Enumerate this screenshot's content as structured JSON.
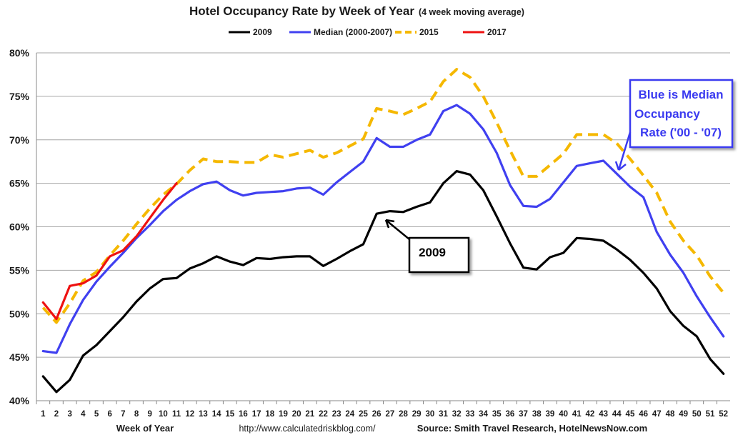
{
  "chart_data": {
    "type": "line",
    "title": "Hotel Occupancy Rate by  Week of Year",
    "subtitle": "(4 week moving average)",
    "xlabel": "Week of Year",
    "ylabel": "",
    "ylim": [
      40,
      80
    ],
    "y_ticks": [
      "40%",
      "45%",
      "50%",
      "55%",
      "60%",
      "65%",
      "70%",
      "75%",
      "80%"
    ],
    "x_ticks": [
      "1",
      "2",
      "3",
      "4",
      "5",
      "6",
      "7",
      "8",
      "9",
      "10",
      "11",
      "12",
      "13",
      "14",
      "15",
      "16",
      "17",
      "18",
      "19",
      "20",
      "21",
      "22",
      "23",
      "24",
      "25",
      "26",
      "27",
      "28",
      "29",
      "30",
      "31",
      "32",
      "33",
      "34",
      "35",
      "36",
      "37",
      "38",
      "39",
      "40",
      "41",
      "42",
      "43",
      "44",
      "45",
      "46",
      "47",
      "48",
      "49",
      "50",
      "51",
      "52"
    ],
    "grid": "horizontal",
    "legend_position": "top-center",
    "series": [
      {
        "name": "2009",
        "color": "#000000",
        "dashed": false,
        "values": [
          42.8,
          41.0,
          42.4,
          45.2,
          46.4,
          48.0,
          49.6,
          51.4,
          52.9,
          54.0,
          54.1,
          55.2,
          55.8,
          56.6,
          56.0,
          55.6,
          56.4,
          56.3,
          56.5,
          56.6,
          56.6,
          55.5,
          56.3,
          57.2,
          58.0,
          61.5,
          61.8,
          61.7,
          62.3,
          62.8,
          65.0,
          66.4,
          66.0,
          64.2,
          61.2,
          58.1,
          55.3,
          55.1,
          56.5,
          57.0,
          58.7,
          58.6,
          58.4,
          57.4,
          56.2,
          54.7,
          52.9,
          50.3,
          48.6,
          47.4,
          44.8,
          43.1
        ]
      },
      {
        "name": "Median (2000-2007)",
        "color": "#4040f0",
        "dashed": false,
        "values": [
          45.7,
          45.5,
          48.8,
          51.6,
          53.7,
          55.4,
          57.0,
          58.7,
          60.2,
          61.8,
          63.1,
          64.1,
          64.9,
          65.2,
          64.2,
          63.6,
          63.9,
          64.0,
          64.1,
          64.4,
          64.5,
          63.7,
          65.1,
          66.3,
          67.5,
          70.2,
          69.2,
          69.2,
          70.0,
          70.6,
          73.3,
          74.0,
          73.0,
          71.2,
          68.5,
          64.8,
          62.4,
          62.3,
          63.2,
          65.1,
          67.0,
          67.3,
          67.6,
          66.1,
          64.6,
          63.4,
          59.4,
          56.8,
          54.7,
          52.0,
          49.6,
          47.4
        ]
      },
      {
        "name": "2015",
        "color": "#f5b800",
        "dashed": true,
        "values": [
          50.7,
          49.0,
          51.2,
          53.8,
          54.8,
          56.7,
          58.4,
          60.3,
          62.1,
          63.7,
          64.9,
          66.5,
          67.8,
          67.5,
          67.5,
          67.4,
          67.4,
          68.3,
          68.0,
          68.4,
          68.8,
          68.0,
          68.5,
          69.3,
          70.1,
          73.6,
          73.3,
          72.9,
          73.6,
          74.4,
          76.7,
          78.1,
          77.2,
          75.0,
          72.0,
          68.8,
          65.8,
          65.8,
          67.1,
          68.4,
          70.6,
          70.6,
          70.6,
          69.6,
          67.8,
          65.9,
          63.9,
          60.6,
          58.4,
          56.7,
          54.3,
          52.4
        ]
      },
      {
        "name": "2017",
        "color": "#ee1111",
        "dashed": false,
        "values": [
          51.3,
          49.4,
          53.2,
          53.5,
          54.4,
          56.6,
          57.3,
          58.9,
          61.0,
          63.1,
          65.0
        ]
      }
    ]
  },
  "callouts": {
    "blue_text": [
      "Blue is Median",
      "Occupancy",
      "Rate ('00 - '07)"
    ],
    "black_text": "2009"
  },
  "footer": {
    "url": "http://www.calculatedriskblog.com/",
    "source": "Source: Smith Travel Research, HotelNewsNow.com"
  }
}
